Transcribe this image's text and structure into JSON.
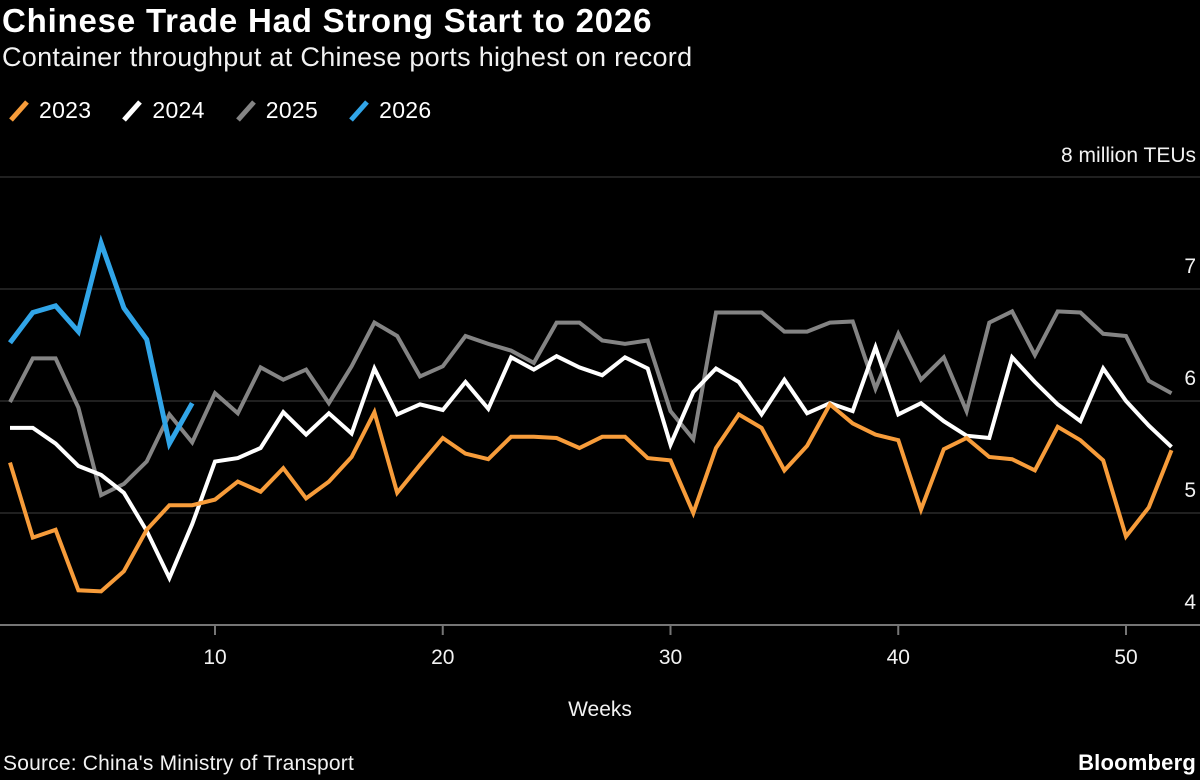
{
  "header": {
    "title": "Chinese Trade Had Strong Start to 2026",
    "subtitle": "Container throughput at Chinese ports highest on record"
  },
  "footer": {
    "source": "Source: China's Ministry of Transport",
    "brand": "Bloomberg"
  },
  "colors": {
    "background": "#000000",
    "gridline": "#3f3f3f",
    "axis_line": "#757575",
    "text": "#f2f2f2"
  },
  "chart_data": {
    "type": "line",
    "title": "Chinese Trade Had Strong Start to 2026",
    "subtitle": "Container throughput at Chinese ports highest on record",
    "xlabel": "Weeks",
    "ylabel": "",
    "unit_top_label": "8 million TEUs",
    "ylim": [
      4,
      8
    ],
    "xlim": [
      1,
      52
    ],
    "grid": "horizontal",
    "legend_position": "top-left",
    "y_gridlines": [
      8,
      7,
      6,
      5,
      4
    ],
    "y_tick_labels": [
      "7",
      "6",
      "5",
      "4"
    ],
    "y_tick_values": [
      7,
      6,
      5,
      4
    ],
    "x_tick_values": [
      10,
      20,
      30,
      40,
      50
    ],
    "x_tick_labels": [
      "10",
      "20",
      "30",
      "40",
      "50"
    ],
    "x_unit": "week",
    "series": [
      {
        "name": "2025",
        "color": "#848484",
        "start_week": 1,
        "values": [
          5.99,
          6.38,
          6.38,
          5.94,
          5.16,
          5.26,
          5.46,
          5.88,
          5.63,
          6.07,
          5.89,
          6.3,
          6.19,
          6.28,
          5.98,
          6.31,
          6.7,
          6.58,
          6.22,
          6.31,
          6.58,
          6.51,
          6.45,
          6.34,
          6.7,
          6.7,
          6.54,
          6.51,
          6.54,
          5.91,
          5.66,
          6.79,
          6.79,
          6.79,
          6.62,
          6.62,
          6.7,
          6.71,
          6.11,
          6.6,
          6.19,
          6.39,
          5.91,
          6.7,
          6.8,
          6.41,
          6.8,
          6.79,
          6.6,
          6.58,
          6.18,
          6.07
        ]
      },
      {
        "name": "2024",
        "color": "#ffffff",
        "start_week": 1,
        "values": [
          5.76,
          5.76,
          5.62,
          5.42,
          5.34,
          5.18,
          4.84,
          4.42,
          4.9,
          5.46,
          5.49,
          5.58,
          5.9,
          5.7,
          5.89,
          5.71,
          6.29,
          5.88,
          5.97,
          5.92,
          6.17,
          5.93,
          6.39,
          6.28,
          6.4,
          6.3,
          6.23,
          6.39,
          6.29,
          5.61,
          6.08,
          6.29,
          6.17,
          5.88,
          6.19,
          5.89,
          5.98,
          5.91,
          6.48,
          5.88,
          5.98,
          5.82,
          5.69,
          5.67,
          6.39,
          6.17,
          5.97,
          5.82,
          6.29,
          6.0,
          5.78,
          5.59
        ]
      },
      {
        "name": "2023",
        "color": "#f79c3a",
        "start_week": 1,
        "values": [
          5.45,
          4.78,
          4.85,
          4.31,
          4.3,
          4.48,
          4.85,
          5.07,
          5.07,
          5.12,
          5.28,
          5.19,
          5.4,
          5.13,
          5.28,
          5.5,
          5.9,
          5.18,
          5.43,
          5.67,
          5.53,
          5.48,
          5.68,
          5.68,
          5.67,
          5.58,
          5.68,
          5.68,
          5.49,
          5.47,
          5.0,
          5.58,
          5.88,
          5.76,
          5.38,
          5.6,
          5.97,
          5.8,
          5.7,
          5.65,
          5.03,
          5.57,
          5.67,
          5.5,
          5.48,
          5.38,
          5.77,
          5.65,
          5.47,
          4.79,
          5.05,
          5.56
        ]
      },
      {
        "name": "2026",
        "color": "#31a5e8",
        "start_week": 1,
        "values": [
          6.52,
          6.79,
          6.85,
          6.62,
          7.41,
          6.83,
          6.55,
          5.62,
          5.98
        ]
      }
    ],
    "legend_order": [
      "2023",
      "2024",
      "2025",
      "2026"
    ]
  }
}
